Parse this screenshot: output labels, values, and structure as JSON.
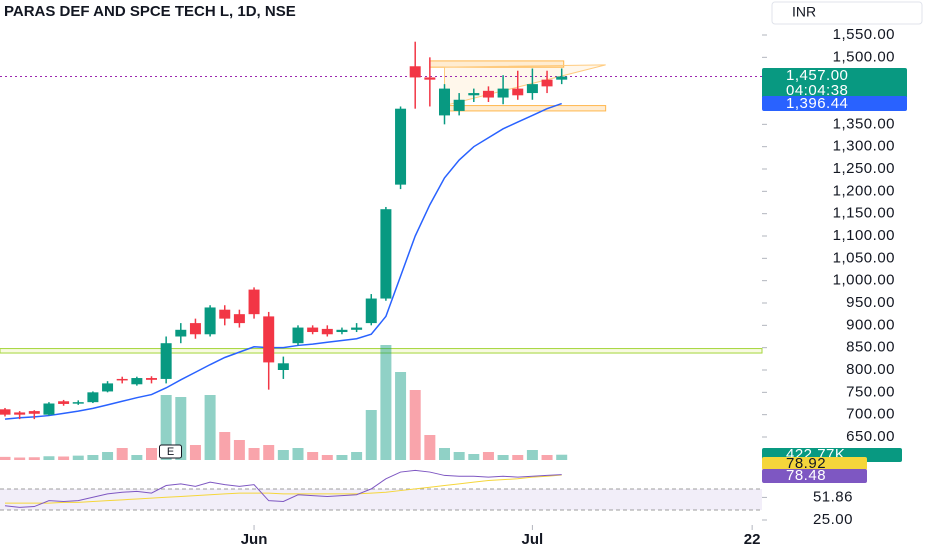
{
  "chart_data": {
    "type": "candlestick",
    "title": "PARAS DEF AND SPCE TECH L, 1D, NSE",
    "currency": "INR",
    "categories": [
      null,
      null,
      null,
      null,
      null,
      null,
      null,
      null,
      null,
      null,
      null,
      null,
      null,
      null,
      null,
      null,
      null,
      "Jun",
      null,
      null,
      null,
      null,
      null,
      null,
      null,
      null,
      null,
      null,
      null,
      null,
      null,
      null,
      null,
      null,
      null,
      null,
      "Jul",
      null,
      null,
      null,
      null,
      null,
      null,
      null,
      null,
      null,
      null,
      null,
      null,
      null,
      null,
      "22"
    ],
    "open": [
      712,
      705,
      708,
      700,
      730,
      725,
      728,
      752,
      780,
      768,
      782,
      780,
      875,
      905,
      880,
      935,
      925,
      980,
      920,
      800,
      860,
      895,
      892,
      885,
      890,
      905,
      960,
      1215,
      1480,
      1455,
      1370,
      1380,
      1415,
      1425,
      1410,
      1430,
      1420,
      1450,
      1450,
      null,
      null,
      null,
      null,
      null,
      null,
      null,
      null,
      null,
      null,
      null,
      null,
      null
    ],
    "high": [
      715,
      708,
      710,
      728,
      733,
      732,
      752,
      775,
      785,
      785,
      786,
      875,
      905,
      915,
      945,
      945,
      935,
      985,
      930,
      830,
      900,
      900,
      900,
      895,
      905,
      970,
      1165,
      1390,
      1535,
      1500,
      1440,
      1420,
      1430,
      1435,
      1460,
      1470,
      1475,
      1470,
      1475,
      null,
      null,
      null,
      null,
      null,
      null,
      null,
      null,
      null,
      null,
      null,
      null,
      null
    ],
    "low": [
      696,
      690,
      690,
      698,
      720,
      722,
      726,
      750,
      770,
      765,
      770,
      770,
      860,
      870,
      875,
      900,
      895,
      915,
      756,
      780,
      855,
      880,
      875,
      880,
      885,
      900,
      955,
      1205,
      1385,
      1390,
      1350,
      1370,
      1400,
      1400,
      1395,
      1405,
      1405,
      1420,
      1440,
      null,
      null,
      null,
      null,
      null,
      null,
      null,
      null,
      null,
      null,
      null,
      null,
      null
    ],
    "close": [
      700,
      700,
      702,
      725,
      724,
      728,
      750,
      770,
      778,
      782,
      778,
      860,
      890,
      880,
      940,
      915,
      905,
      925,
      817,
      815,
      895,
      885,
      880,
      890,
      895,
      960,
      1160,
      1385,
      1455,
      1450,
      1430,
      1405,
      1420,
      1410,
      1430,
      1415,
      1440,
      1435,
      1457,
      null,
      null,
      null,
      null,
      null,
      null,
      null,
      null,
      null,
      null,
      null,
      null,
      null
    ],
    "volume": [
      250,
      200,
      220,
      300,
      280,
      350,
      400,
      640,
      960,
      400,
      960,
      5200,
      5040,
      1200,
      5200,
      2240,
      1600,
      960,
      1200,
      800,
      960,
      640,
      400,
      400,
      640,
      4000,
      9200,
      7040,
      5600,
      2000,
      960,
      640,
      480,
      640,
      400,
      400,
      800,
      400,
      422.77,
      null,
      null,
      null,
      null,
      null,
      null,
      null,
      null,
      null,
      null,
      null,
      null,
      null
    ],
    "ema": [
      690,
      693,
      695,
      698,
      703,
      708,
      714,
      722,
      730,
      738,
      745,
      760,
      778,
      795,
      812,
      828,
      840,
      852,
      850,
      850,
      855,
      858,
      862,
      866,
      870,
      880,
      920,
      1010,
      1100,
      1170,
      1230,
      1270,
      1300,
      1320,
      1340,
      1355,
      1370,
      1385,
      1396.44,
      null,
      null,
      null,
      null,
      null,
      null,
      null,
      null,
      null,
      null,
      null,
      null,
      null
    ],
    "rsi": [
      42,
      40,
      41,
      48,
      47,
      48,
      52,
      56,
      58,
      59,
      57,
      66,
      68,
      65,
      70,
      67,
      65,
      67,
      48,
      47,
      55,
      54,
      53,
      54,
      55,
      62,
      74,
      82,
      84,
      82,
      78,
      77,
      77,
      76,
      77,
      76,
      77,
      78,
      78.92,
      null,
      null,
      null,
      null,
      null,
      null,
      null,
      null,
      null,
      null,
      null,
      null,
      null
    ],
    "rsi_ma": [
      45,
      45,
      45,
      45,
      46,
      46,
      47,
      48,
      49,
      50,
      51,
      52,
      53,
      54,
      55,
      56,
      57,
      57,
      57,
      56,
      56,
      56,
      56,
      56,
      56,
      57,
      58,
      60,
      62,
      64,
      66,
      68,
      70,
      72,
      73,
      74,
      76,
      77,
      78.48,
      null,
      null,
      null,
      null,
      null,
      null,
      null,
      null,
      null,
      null,
      null,
      null,
      null
    ],
    "last_price": 1457,
    "last_price_label": "1,457.00",
    "countdown": "04:04:38",
    "ema_last_label": "1,396.44",
    "volume_last_label": "422.77K",
    "rsi_last_label": "78.92",
    "rsi_ma_last_label": "78.48",
    "earnings_marker": "E",
    "support_zone": [
      838,
      848
    ],
    "upper_zone": [
      1478,
      1492
    ],
    "lower_zone": [
      1380,
      1392
    ],
    "ylim": [
      650,
      1550
    ],
    "yticks": [
      {
        "value": 1550,
        "label": "1,550.00"
      },
      {
        "value": 1500,
        "label": "1,500.00"
      },
      {
        "value": 1350,
        "label": "1,350.00"
      },
      {
        "value": 1300,
        "label": "1,300.00"
      },
      {
        "value": 1250,
        "label": "1,250.00"
      },
      {
        "value": 1200,
        "label": "1,200.00"
      },
      {
        "value": 1150,
        "label": "1,150.00"
      },
      {
        "value": 1100,
        "label": "1,100.00"
      },
      {
        "value": 1050,
        "label": "1,050.00"
      },
      {
        "value": 1000,
        "label": "1,000.00"
      },
      {
        "value": 950,
        "label": "950.00"
      },
      {
        "value": 900,
        "label": "900.00"
      },
      {
        "value": 850,
        "label": "850.00"
      },
      {
        "value": 800,
        "label": "800.00"
      },
      {
        "value": 750,
        "label": "750.00"
      },
      {
        "value": 700,
        "label": "700.00"
      },
      {
        "value": 650,
        "label": "650.00"
      }
    ],
    "rsi_ticks": [
      {
        "value": 51.86,
        "label": "51.86"
      },
      {
        "value": 25,
        "label": "25.00"
      }
    ],
    "up_color": "#089981",
    "down_color": "#f23645",
    "ema_color": "#2962ff",
    "rsi_color": "#7e57c2",
    "rsi_ma_color": "#f5d63b"
  }
}
